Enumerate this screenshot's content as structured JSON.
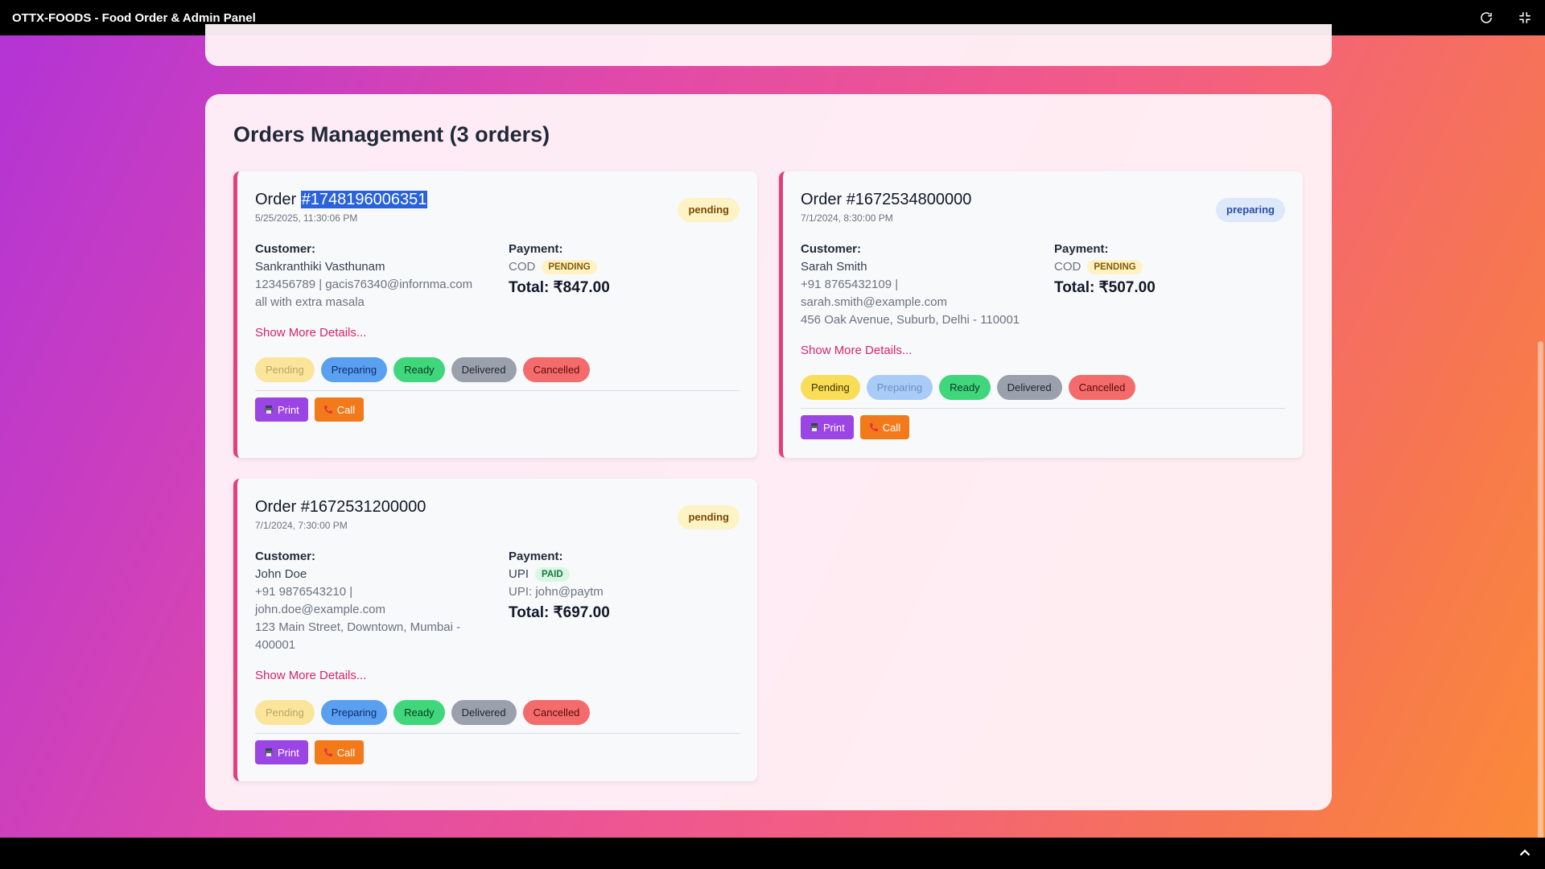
{
  "window": {
    "title": "OTTX-FOODS - Food Order & Admin Panel"
  },
  "panel": {
    "title": "Orders Management (3 orders)"
  },
  "labels": {
    "customer": "Customer:",
    "payment": "Payment:",
    "show_more": "Show More Details...",
    "print": "Print",
    "call": "Call",
    "order_prefix": "Order ",
    "status_buttons": [
      "Pending",
      "Preparing",
      "Ready",
      "Delivered",
      "Cancelled"
    ]
  },
  "orders": [
    {
      "id": "#1748196006351",
      "date": "5/25/2025, 11:30:06 PM",
      "status": "pending",
      "customer_name": "Sankranthiki Vasthunam",
      "contact": "123456789 | gacis76340@infornma.com",
      "note": "all with extra masala",
      "payment_method": "COD",
      "payment_status": "PENDING",
      "total": "Total: ₹847.00"
    },
    {
      "id": "#1672534800000",
      "date": "7/1/2024, 8:30:00 PM",
      "status": "preparing",
      "customer_name": "Sarah Smith",
      "contact_line1": "+91 8765432109 |",
      "contact_line2": "sarah.smith@example.com",
      "address": "456 Oak Avenue, Suburb, Delhi - 110001",
      "payment_method": "COD",
      "payment_status": "PENDING",
      "total": "Total: ₹507.00"
    },
    {
      "id": "#1672531200000",
      "date": "7/1/2024, 7:30:00 PM",
      "status": "pending",
      "customer_name": "John Doe",
      "contact_line1": "+91 9876543210 |",
      "contact_line2": "john.doe@example.com",
      "address_line1": "123 Main Street, Downtown, Mumbai -",
      "address_line2": "400001",
      "payment_method": "UPI",
      "payment_status": "PAID",
      "upi": "UPI: john@paytm",
      "total": "Total: ₹697.00"
    }
  ],
  "colors": {
    "accent_border": "#e0407e",
    "link": "#d8246b",
    "print": "#9b45e4",
    "call": "#f37a1a"
  },
  "icons": [
    "refresh-icon",
    "minimize-icon",
    "chevron-up-icon",
    "printer-icon",
    "phone-icon"
  ]
}
